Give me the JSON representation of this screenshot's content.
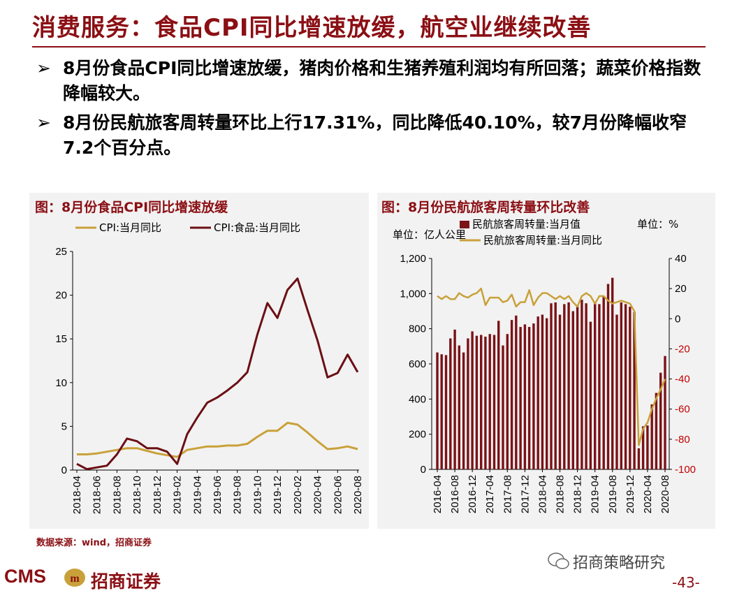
{
  "title": "消费服务：食品CPI同比增速放缓，航空业继续改善",
  "bullets": [
    "8月份食品CPI同比增速放缓，猪肉价格和生猪养殖利润均有所回落；蔬菜价格指数降幅较大。",
    "8月份民航旅客周转量环比上行17.31%，同比降低40.10%，较7月份降幅收窄7.2个百分点。"
  ],
  "bullet_marker": "➢",
  "source": "数据来源：wind，招商证券",
  "footer": {
    "logo": "CMS",
    "brand": "招商证券",
    "watermark": "招商策略研究",
    "page": "-43-"
  },
  "colors": {
    "accent": "#8b0f14",
    "gold": "#c9a13a",
    "dark_red": "#6b0f14",
    "bar": "#7a1216",
    "panel_bg": "#f2f2f2"
  },
  "chart_data": [
    {
      "type": "line",
      "title": "图：8月份食品CPI同比增速放缓",
      "series": [
        {
          "name": "CPI:当月同比",
          "values": [
            1.8,
            1.8,
            1.9,
            2.1,
            2.3,
            2.5,
            2.5,
            2.2,
            1.9,
            1.7,
            1.5,
            2.3,
            2.5,
            2.7,
            2.7,
            2.8,
            2.8,
            3.0,
            3.8,
            4.5,
            4.5,
            5.4,
            5.2,
            4.3,
            3.3,
            2.4,
            2.5,
            2.7,
            2.4
          ]
        },
        {
          "name": "CPI:食品:当月同比",
          "values": [
            0.7,
            0.1,
            0.3,
            0.5,
            1.8,
            3.6,
            3.3,
            2.5,
            2.5,
            2.1,
            0.7,
            4.1,
            6.0,
            7.7,
            8.3,
            9.1,
            10.0,
            11.2,
            15.5,
            19.1,
            17.4,
            20.6,
            21.9,
            18.3,
            14.8,
            10.6,
            11.1,
            13.2,
            11.2
          ]
        }
      ],
      "x_start": "2018-04",
      "x_ticks": [
        "2018-04",
        "2018-06",
        "2018-08",
        "2018-10",
        "2018-12",
        "2019-02",
        "2019-04",
        "2019-06",
        "2019-08",
        "2019-10",
        "2019-12",
        "2020-02",
        "2020-04",
        "2020-06",
        "2020-08"
      ],
      "ylim": [
        0,
        25
      ],
      "yticks": [
        0,
        5,
        10,
        15,
        20,
        25
      ],
      "grid": false,
      "legend": "top"
    },
    {
      "type": "bar",
      "title": "图：8月份民航旅客周转量环比改善",
      "unit_left": "单位：亿人公里",
      "unit_right": "单位：%",
      "series": [
        {
          "name": "民航旅客周转量:当月值",
          "axis": "left",
          "values": [
            665,
            655,
            650,
            745,
            795,
            705,
            665,
            745,
            785,
            760,
            765,
            755,
            770,
            765,
            845,
            705,
            770,
            850,
            875,
            810,
            825,
            810,
            830,
            870,
            880,
            860,
            945,
            950,
            880,
            940,
            950,
            900,
            935,
            965,
            945,
            840,
            950,
            940,
            985,
            1055,
            1090,
            880,
            950,
            940,
            925,
            895,
            120,
            245,
            250,
            370,
            435,
            550,
            645
          ]
        },
        {
          "name": "民航旅客周转量:当月同比",
          "axis": "right",
          "values": [
            15,
            13,
            15,
            13,
            13,
            17,
            15,
            14,
            16,
            17,
            20,
            9,
            14,
            14,
            14,
            11,
            12,
            16,
            8,
            11,
            11,
            19,
            9,
            14,
            17,
            17,
            15,
            13,
            15,
            13,
            15,
            11,
            8,
            15,
            17,
            15,
            10,
            15,
            15,
            12,
            10,
            11,
            12,
            11,
            10,
            5,
            -84,
            -73,
            -69,
            -60,
            -53,
            -47,
            -40
          ]
        }
      ],
      "x_start": "2016-04",
      "x_ticks": [
        "2016-04",
        "2016-08",
        "2016-12",
        "2017-04",
        "2017-08",
        "2017-12",
        "2018-04",
        "2018-08",
        "2018-12",
        "2019-04",
        "2019-08",
        "2019-12",
        "2020-04",
        "2020-08"
      ],
      "ylim_left": [
        0,
        1200
      ],
      "yticks_left": [
        "0",
        "200",
        "400",
        "600",
        "800",
        "1,000",
        "1,200"
      ],
      "ylim_right": [
        -100,
        40
      ],
      "yticks_right": [
        "-100",
        "-80",
        "-60",
        "-40",
        "-20",
        "0",
        "20",
        "40"
      ],
      "grid": false,
      "legend": "top-left"
    }
  ]
}
